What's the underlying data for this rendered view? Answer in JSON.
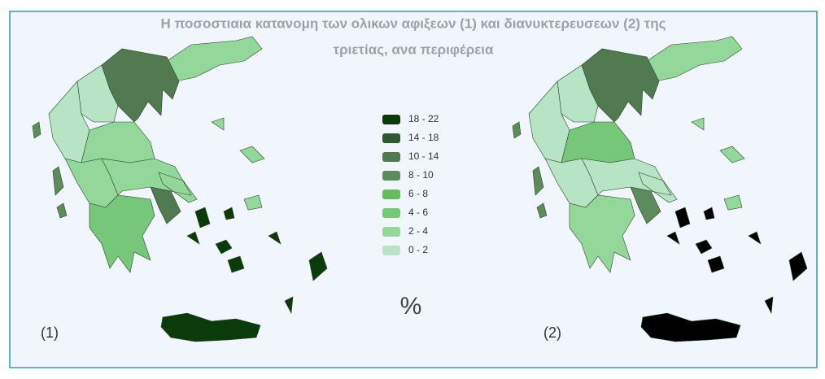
{
  "title_line1": "Η  ποσοστιαια κατανομη των ολικων αφιξεων (1) και διανυκτερευσεων (2) της",
  "title_line2": "τριετίας, ανα περιφέρεια",
  "legend": [
    {
      "label": "18 - 22",
      "color": "#0b3b0b"
    },
    {
      "label": "14 - 18",
      "color": "#2f5930"
    },
    {
      "label": "10 - 14",
      "color": "#517a51"
    },
    {
      "label": "8 - 10",
      "color": "#5d8b5d"
    },
    {
      "label": "6 - 8",
      "color": "#66bb5f"
    },
    {
      "label": "4 - 6",
      "color": "#76c77a"
    },
    {
      "label": "2 - 4",
      "color": "#93d89a"
    },
    {
      "label": "0 - 2",
      "color": "#b6e4c4"
    }
  ],
  "map2_top_color": "#000000",
  "unit": "%",
  "map1_label": "(1)",
  "map2_label": "(2)"
}
